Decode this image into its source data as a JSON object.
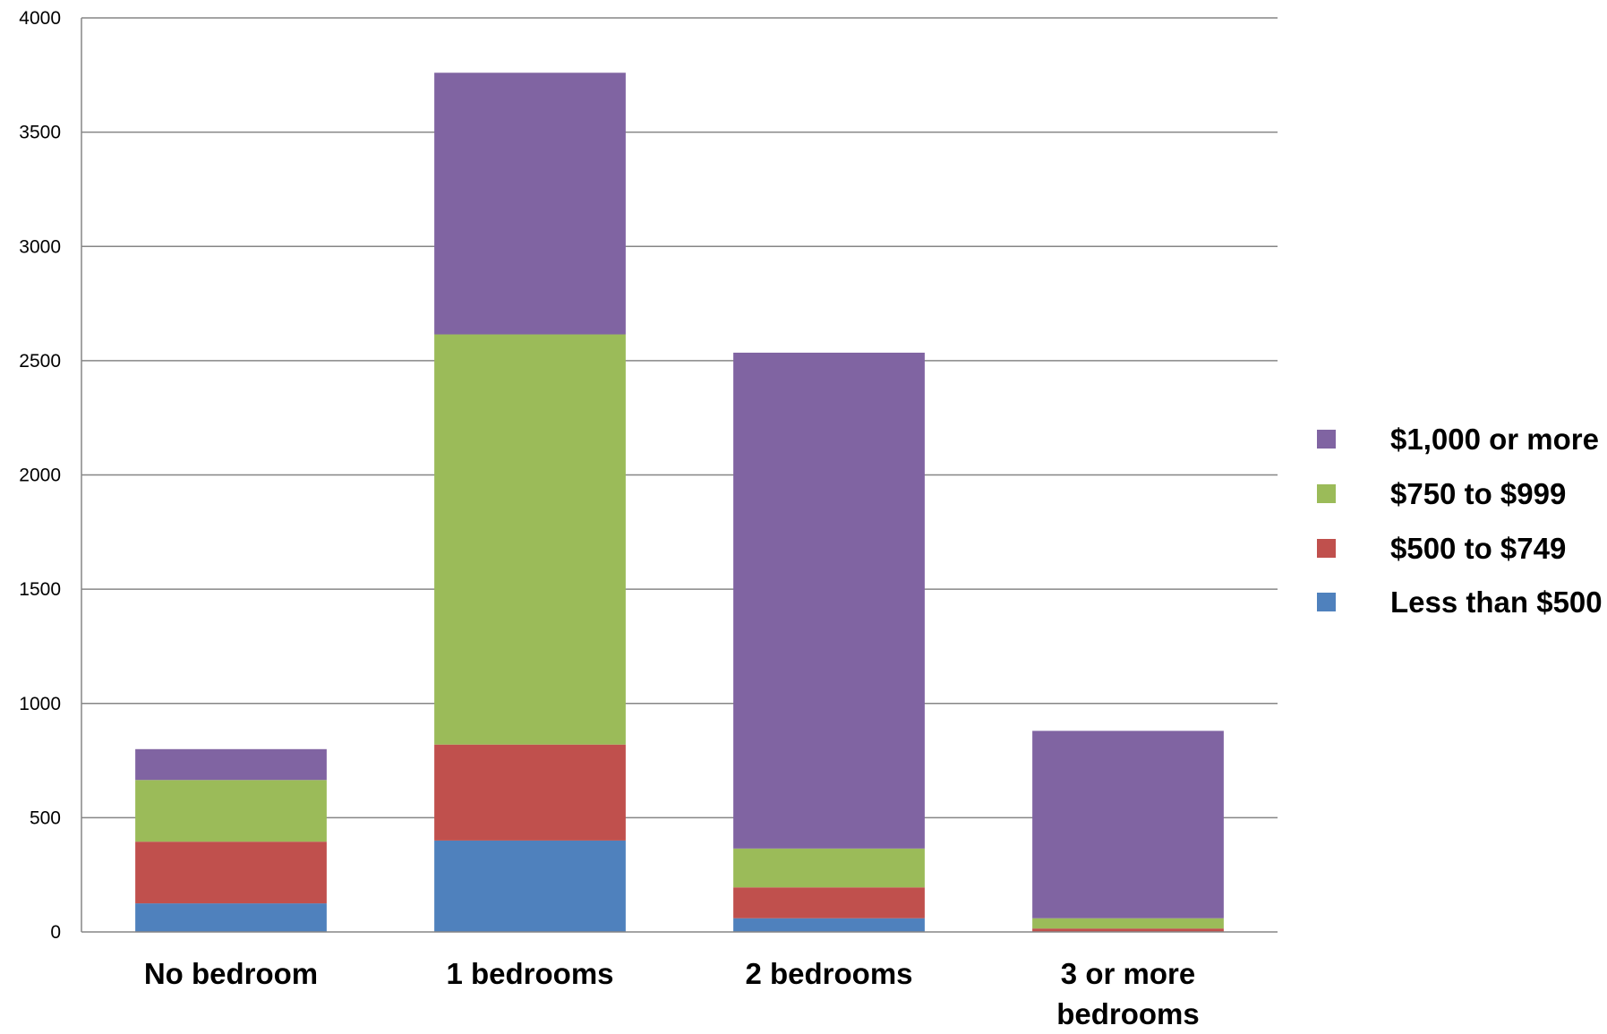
{
  "chart_data": {
    "type": "bar",
    "stacked": true,
    "categories": [
      "No bedroom",
      "1 bedrooms",
      "2 bedrooms",
      "3 or more bedrooms"
    ],
    "category_lines": [
      [
        "No bedroom"
      ],
      [
        "1 bedrooms"
      ],
      [
        "2 bedrooms"
      ],
      [
        "3 or more",
        "bedrooms"
      ]
    ],
    "series": [
      {
        "name": "Less than $500",
        "color": "#4f81bd",
        "values": [
          125,
          400,
          60,
          0
        ]
      },
      {
        "name": "$500 to $749",
        "color": "#c0504d",
        "values": [
          270,
          420,
          135,
          15
        ]
      },
      {
        "name": "$750 to $999",
        "color": "#9bbb59",
        "values": [
          270,
          1795,
          170,
          45
        ]
      },
      {
        "name": "$1,000 or more",
        "color": "#8064a2",
        "values": [
          135,
          1145,
          2170,
          820
        ]
      }
    ],
    "legend_order": [
      "$1,000 or more",
      "$750 to $999",
      "$500 to $749",
      "Less than $500"
    ],
    "ylim": [
      0,
      4000
    ],
    "yticks": [
      0,
      500,
      1000,
      1500,
      2000,
      2500,
      3000,
      3500,
      4000
    ],
    "grid": true,
    "legend_position": "right",
    "gridline_color": "#868686",
    "title": "",
    "xlabel": "",
    "ylabel": ""
  }
}
